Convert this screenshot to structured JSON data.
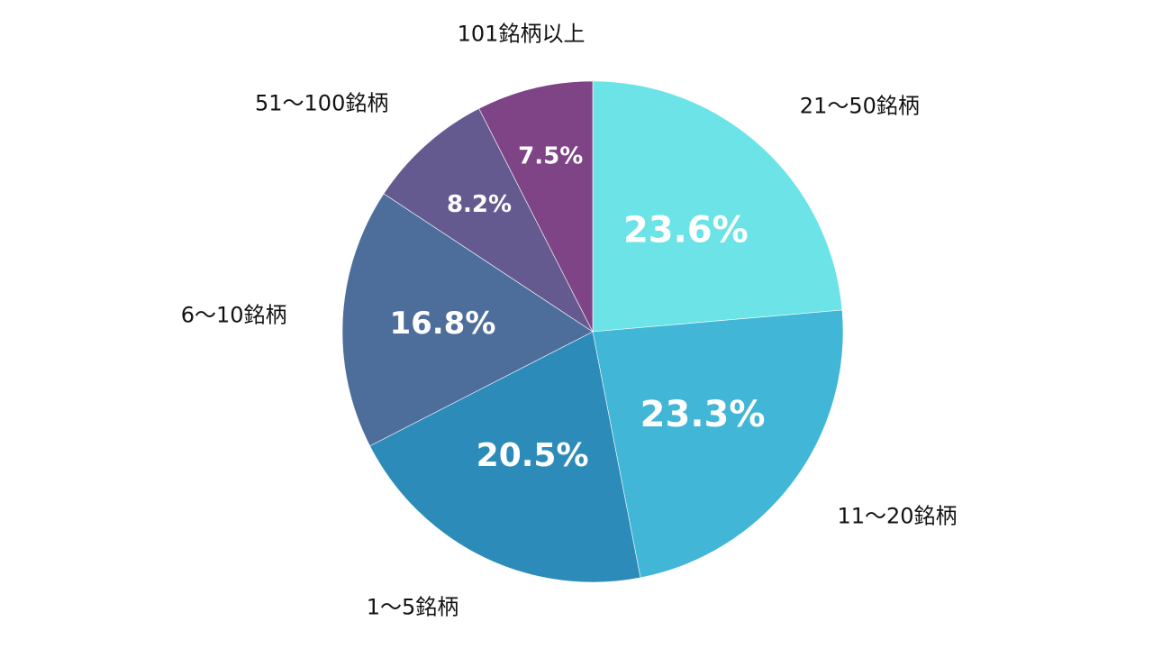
{
  "chart_data": {
    "type": "pie",
    "start": "top",
    "direction": "clockwise",
    "slices": [
      {
        "label": "21～50銘柄",
        "value": 23.6,
        "value_label": "23.6%",
        "color": "#6ce3e7"
      },
      {
        "label": "11～20銘柄",
        "value": 23.3,
        "value_label": "23.3%",
        "color": "#41b6d6"
      },
      {
        "label": "1～5銘柄",
        "value": 20.5,
        "value_label": "20.5%",
        "color": "#2d8bb9"
      },
      {
        "label": "6～10銘柄",
        "value": 16.8,
        "value_label": "16.8%",
        "color": "#4d6e9b"
      },
      {
        "label": "51～100銘柄",
        "value": 8.2,
        "value_label": "8.2%",
        "color": "#655a8f"
      },
      {
        "label": "101銘柄以上",
        "value": 7.5,
        "value_label": "7.5%",
        "color": "#7e4486"
      }
    ]
  }
}
